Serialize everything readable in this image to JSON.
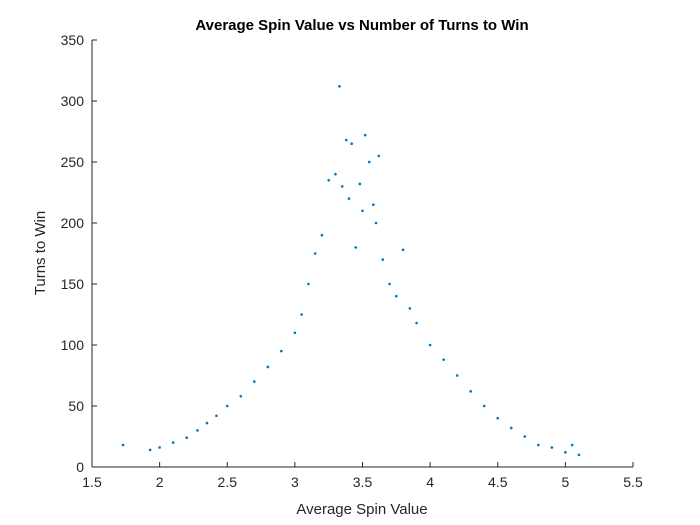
{
  "chart_data": {
    "type": "scatter",
    "title": "Average Spin Value vs Number of Turns to Win",
    "xlabel": "Average Spin Value",
    "ylabel": "Turns to Win",
    "xlim": [
      1.5,
      5.5
    ],
    "ylim": [
      0,
      350
    ],
    "x_ticks": [
      "1.5",
      "2",
      "2.5",
      "3",
      "3.5",
      "4",
      "4.5",
      "5",
      "5.5"
    ],
    "y_ticks": [
      "0",
      "50",
      "100",
      "150",
      "200",
      "250",
      "300",
      "350"
    ],
    "grid": false,
    "legend": "none",
    "marker_color": "#0072BD",
    "series": [
      {
        "x": [
          1.73,
          1.93,
          2.0,
          2.1,
          2.2,
          2.28,
          2.35,
          2.42,
          2.5,
          2.6,
          2.7,
          2.8,
          2.9,
          3.0,
          3.05,
          3.1,
          3.15,
          3.2,
          3.25,
          3.3,
          3.33,
          3.35,
          3.38,
          3.4,
          3.42,
          3.45,
          3.48,
          3.5,
          3.52,
          3.55,
          3.58,
          3.6,
          3.62,
          3.65,
          3.7,
          3.75,
          3.8,
          3.85,
          3.9,
          4.0,
          4.1,
          4.2,
          4.3,
          4.4,
          4.5,
          4.6,
          4.7,
          4.8,
          4.9,
          5.0,
          5.05,
          5.1
        ],
        "y": [
          18,
          14,
          16,
          20,
          24,
          30,
          36,
          42,
          50,
          58,
          70,
          82,
          95,
          110,
          125,
          150,
          175,
          190,
          235,
          240,
          312,
          230,
          268,
          220,
          265,
          180,
          232,
          210,
          272,
          250,
          215,
          200,
          255,
          170,
          150,
          140,
          178,
          130,
          118,
          100,
          88,
          75,
          62,
          50,
          40,
          32,
          25,
          18,
          16,
          12,
          18,
          10
        ]
      }
    ]
  }
}
